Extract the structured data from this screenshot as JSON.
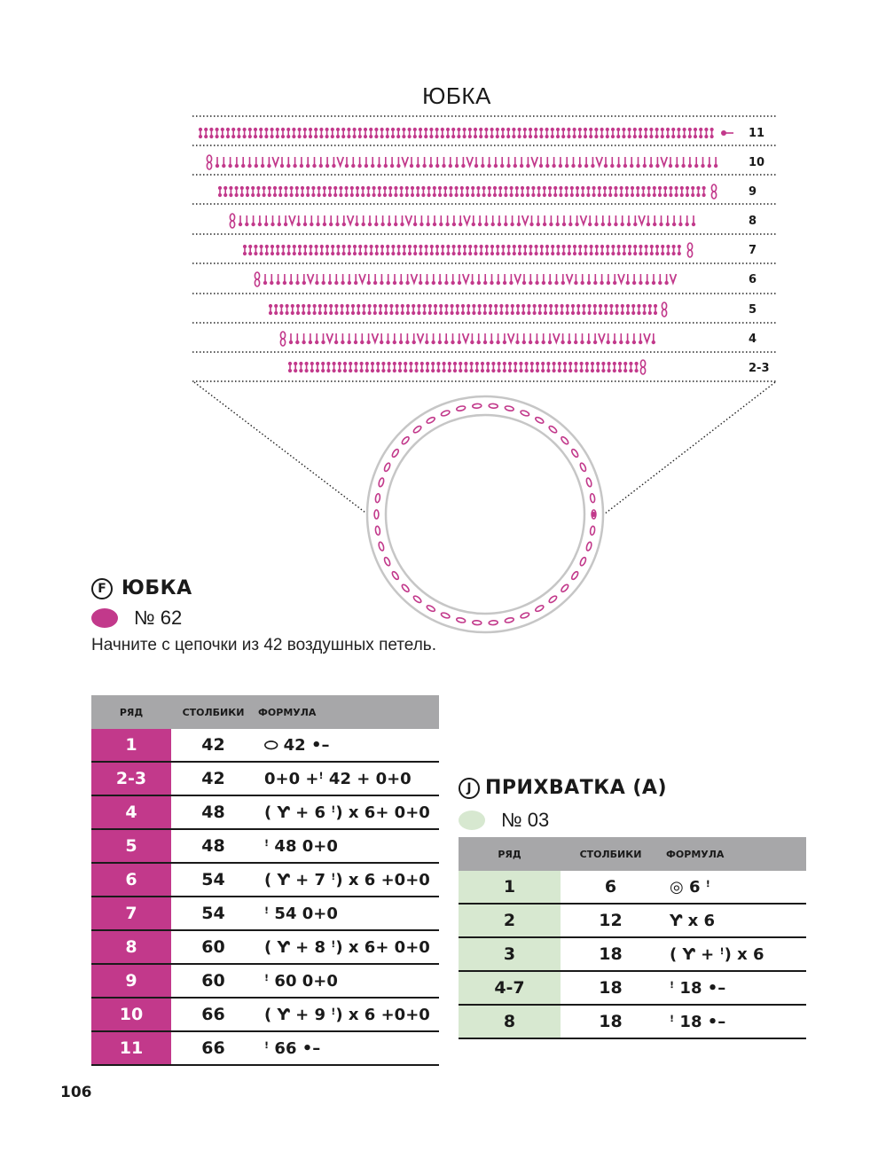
{
  "diagram": {
    "title": "ЮБКА",
    "row_labels": [
      "11",
      "10",
      "9",
      "8",
      "7",
      "6",
      "5",
      "4",
      "2-3"
    ],
    "stitch_color": "#c2398b",
    "ring_color": "#c6c6c6"
  },
  "skirt": {
    "letter": "F",
    "title": "ЮБКА",
    "yarn_color": "#c2398b",
    "yarn_label": "№ 62",
    "intro": "Начните с цепочки из 42 воздушных петель.",
    "headers": [
      "РЯД",
      "СТОЛБИКИ",
      "ФОРМУЛА"
    ],
    "rows": [
      {
        "row": "1",
        "stitches": "42",
        "formula": "⬭ 42 •–"
      },
      {
        "row": "2-3",
        "stitches": "42",
        "formula": "0+0 +ꜝ 42 + 0+0"
      },
      {
        "row": "4",
        "stitches": "48",
        "formula": "( Ƴ + 6 ꜝ) x 6+ 0+0"
      },
      {
        "row": "5",
        "stitches": "48",
        "formula": "ꜝ 48 0+0"
      },
      {
        "row": "6",
        "stitches": "54",
        "formula": "( Ƴ + 7 ꜝ) x 6 +0+0"
      },
      {
        "row": "7",
        "stitches": "54",
        "formula": "ꜝ 54 0+0"
      },
      {
        "row": "8",
        "stitches": "60",
        "formula": "( Ƴ + 8 ꜝ) x 6+ 0+0"
      },
      {
        "row": "9",
        "stitches": "60",
        "formula": "ꜝ 60 0+0"
      },
      {
        "row": "10",
        "stitches": "66",
        "formula": "( Ƴ + 9 ꜝ) x 6 +0+0"
      },
      {
        "row": "11",
        "stitches": "66",
        "formula": "ꜝ 66 •–"
      }
    ]
  },
  "potholder": {
    "letter": "J",
    "title": "ПРИХВАТКА (А)",
    "yarn_color": "#d7e8d0",
    "yarn_label": "№ 03",
    "headers": [
      "РЯД",
      "СТОЛБИКИ",
      "ФОРМУЛА"
    ],
    "rows": [
      {
        "row": "1",
        "stitches": "6",
        "formula": "◎ 6 ꜝ"
      },
      {
        "row": "2",
        "stitches": "12",
        "formula": "Ƴ x 6"
      },
      {
        "row": "3",
        "stitches": "18",
        "formula": "( Ƴ + ꜝ) x 6"
      },
      {
        "row": "4-7",
        "stitches": "18",
        "formula": "ꜝ 18 •–"
      },
      {
        "row": "8",
        "stitches": "18",
        "formula": "ꜝ 18 •–"
      }
    ]
  },
  "page_number": "106"
}
